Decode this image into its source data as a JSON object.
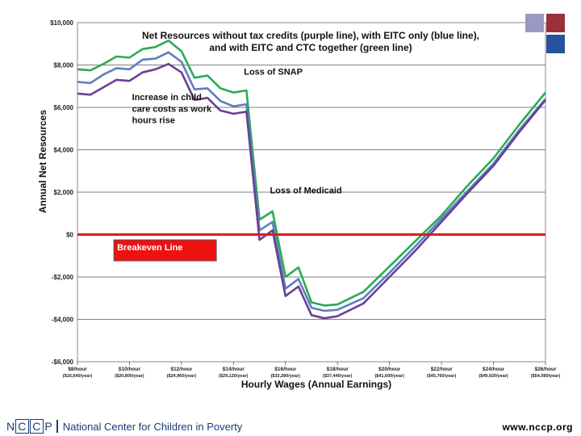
{
  "chart_data": {
    "type": "line",
    "title_line1": "Net Resources without tax credits (purple line), with EITC only (blue line),",
    "title_line2": "and with EITC and CTC together (green line)",
    "ylabel": "Annual Net Resources",
    "xlabel": "Hourly Wages (Annual Earnings)",
    "ylim": [
      -6000,
      10000
    ],
    "y_ticks": [
      -6000,
      -4000,
      -2000,
      0,
      2000,
      4000,
      6000,
      8000,
      10000
    ],
    "y_tick_labels": [
      "-$6,000",
      "-$4,000",
      "-$2,000",
      "$0",
      "$2,000",
      "$4,000",
      "$6,000",
      "$8,000",
      "$10,000"
    ],
    "xlim": [
      8,
      26
    ],
    "x_ticks": [
      8,
      10,
      12,
      14,
      16,
      18,
      20,
      22,
      24,
      26
    ],
    "x_tick_labels": [
      "$8/hour",
      "$10/hour",
      "$12/hour",
      "$14/hour",
      "$16/hour",
      "$18/hour",
      "$20/hour",
      "$22/hour",
      "$24/hour",
      "$26/hour"
    ],
    "x_tick_sublabels": [
      "($16,640/year)",
      "($20,800/year)",
      "($24,960/year)",
      "($29,120/year)",
      "($33,280/year)",
      "($37,440/year)",
      "($41,600/year)",
      "($45,760/year)",
      "($49,920/year)",
      "($54,080/year)"
    ],
    "series": [
      {
        "name": "EITC and CTC (green)",
        "color": "#2bab52",
        "x": [
          8,
          8.5,
          9,
          9.5,
          10,
          10.5,
          11,
          11.5,
          12,
          12.5,
          13,
          13.5,
          14,
          14.5,
          15,
          15.5,
          16,
          16.5,
          17,
          17.5,
          18,
          19,
          20,
          21,
          22,
          23,
          24,
          25,
          26
        ],
        "y": [
          7800,
          7750,
          8050,
          8400,
          8350,
          8750,
          8850,
          9150,
          8650,
          7400,
          7500,
          6900,
          6700,
          6800,
          700,
          1100,
          -2000,
          -1550,
          -3200,
          -3350,
          -3300,
          -2700,
          -1500,
          -300,
          900,
          2300,
          3600,
          5200,
          6700
        ]
      },
      {
        "name": "EITC only (blue)",
        "color": "#5b7fc1",
        "x": [
          8,
          8.5,
          9,
          9.5,
          10,
          10.5,
          11,
          11.5,
          12,
          12.5,
          13,
          13.5,
          14,
          14.5,
          15,
          15.5,
          16,
          16.5,
          17,
          17.5,
          18,
          19,
          20,
          21,
          22,
          23,
          24,
          25,
          26
        ],
        "y": [
          7200,
          7150,
          7550,
          7850,
          7800,
          8250,
          8300,
          8600,
          8150,
          6850,
          6900,
          6300,
          6050,
          6150,
          200,
          600,
          -2550,
          -2100,
          -3450,
          -3600,
          -3550,
          -3000,
          -1800,
          -550,
          750,
          2050,
          3350,
          4950,
          6400
        ]
      },
      {
        "name": "No tax credits (purple)",
        "color": "#6a3f94",
        "x": [
          8,
          8.5,
          9,
          9.5,
          10,
          10.5,
          11,
          11.5,
          12,
          12.5,
          13,
          13.5,
          14,
          14.5,
          15,
          15.5,
          16,
          16.5,
          17,
          17.5,
          18,
          19,
          20,
          21,
          22,
          23,
          24,
          25,
          26
        ],
        "y": [
          6650,
          6600,
          6950,
          7300,
          7250,
          7650,
          7800,
          8050,
          7650,
          6350,
          6450,
          5850,
          5700,
          5800,
          -250,
          200,
          -2900,
          -2450,
          -3800,
          -3950,
          -3850,
          -3250,
          -2000,
          -750,
          600,
          1950,
          3250,
          4850,
          6350
        ]
      }
    ],
    "annotations": [
      {
        "text": "Loss of SNAP",
        "x": 14.4,
        "y": 7550
      },
      {
        "text": "Increase in child",
        "x": 10.1,
        "y": 6350
      },
      {
        "text": "care costs as work",
        "x": 10.1,
        "y": 5800
      },
      {
        "text": "hours rise",
        "x": 10.1,
        "y": 5250
      },
      {
        "text": "Loss of Medicaid",
        "x": 15.4,
        "y": 1950
      }
    ],
    "breakeven": {
      "y": 0,
      "color": "#d81e1e",
      "label": "Breakeven Line",
      "label_x": 9.4,
      "label_y": -250
    }
  },
  "decor_colors": [
    "#9b98c5",
    "#9b2f3c",
    "#27539a"
  ],
  "footer": {
    "logo_letters": [
      "N",
      "C",
      "C",
      "P"
    ],
    "org_name": "National Center for Children in Poverty",
    "url": "www.nccp.org"
  }
}
